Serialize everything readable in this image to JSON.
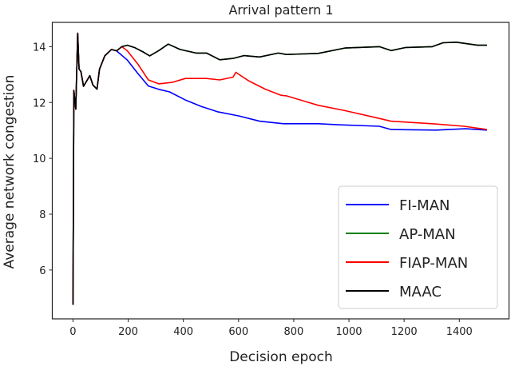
{
  "chart_data": {
    "type": "line",
    "title": "Arrival pattern 1",
    "xlabel": "Decision epoch",
    "ylabel": "Average network congestion",
    "xlim": [
      -75,
      1580
    ],
    "ylim": [
      4.25,
      14.87
    ],
    "xticks": [
      0,
      200,
      400,
      600,
      800,
      1000,
      1200,
      1400
    ],
    "yticks": [
      6,
      8,
      10,
      12,
      14
    ],
    "grid": false,
    "legend_position": "lower-right",
    "series": [
      {
        "name": "FI-MAN",
        "color": "#0000ff",
        "x": [
          0,
          3,
          10,
          17,
          22,
          29,
          38,
          61,
          72,
          87,
          96,
          115,
          139,
          158,
          197,
          235,
          273,
          311,
          350,
          407,
          465,
          523,
          600,
          677,
          763,
          889,
          966,
          1110,
          1153,
          1317,
          1422,
          1500
        ],
        "y": [
          4.75,
          12.43,
          11.76,
          14.48,
          13.2,
          13.1,
          12.58,
          12.96,
          12.63,
          12.48,
          13.19,
          13.67,
          13.9,
          13.85,
          13.52,
          13.04,
          12.59,
          12.47,
          12.38,
          12.09,
          11.86,
          11.67,
          11.52,
          11.33,
          11.24,
          11.24,
          11.2,
          11.15,
          11.03,
          11.01,
          11.06,
          11.01
        ]
      },
      {
        "name": "AP-MAN",
        "color": "#008000",
        "x": [
          0,
          3,
          10,
          17,
          22,
          29,
          38,
          61,
          72,
          87,
          96,
          115,
          139,
          158,
          177,
          197,
          225,
          254,
          278,
          311,
          345,
          388,
          446,
          484,
          532,
          580,
          619,
          676,
          744,
          773,
          889,
          985,
          1110,
          1153,
          1206,
          1302,
          1341,
          1389,
          1466,
          1500
        ],
        "y": [
          4.75,
          12.43,
          11.76,
          14.48,
          13.2,
          13.1,
          12.58,
          12.96,
          12.63,
          12.48,
          13.19,
          13.67,
          13.9,
          13.85,
          14.0,
          14.05,
          13.96,
          13.81,
          13.67,
          13.86,
          14.09,
          13.9,
          13.77,
          13.77,
          13.53,
          13.58,
          13.68,
          13.63,
          13.77,
          13.72,
          13.76,
          13.95,
          14.0,
          13.86,
          13.97,
          14.0,
          14.14,
          14.16,
          14.05,
          14.05
        ]
      },
      {
        "name": "FIAP-MAN",
        "color": "#ff0000",
        "x": [
          0,
          3,
          10,
          17,
          22,
          29,
          38,
          61,
          72,
          87,
          96,
          115,
          139,
          158,
          177,
          197,
          235,
          273,
          311,
          359,
          407,
          484,
          532,
          580,
          590,
          638,
          696,
          754,
          773,
          889,
          985,
          1110,
          1153,
          1302,
          1417,
          1500
        ],
        "y": [
          4.75,
          12.43,
          11.76,
          14.48,
          13.2,
          13.1,
          12.58,
          12.96,
          12.63,
          12.48,
          13.19,
          13.67,
          13.9,
          13.85,
          14.0,
          13.85,
          13.38,
          12.81,
          12.67,
          12.72,
          12.86,
          12.86,
          12.81,
          12.91,
          13.08,
          12.77,
          12.48,
          12.26,
          12.24,
          11.9,
          11.71,
          11.43,
          11.33,
          11.24,
          11.15,
          11.03
        ]
      },
      {
        "name": "MAAC",
        "color": "#000000",
        "x": [
          0,
          3,
          10,
          17,
          22,
          29,
          38,
          61,
          72,
          87,
          96,
          115,
          139,
          158,
          177,
          197,
          225,
          254,
          278,
          311,
          345,
          388,
          446,
          484,
          532,
          580,
          619,
          676,
          744,
          773,
          889,
          985,
          1110,
          1153,
          1206,
          1302,
          1341,
          1389,
          1466,
          1500
        ],
        "y": [
          4.75,
          12.43,
          11.76,
          14.48,
          13.2,
          13.1,
          12.58,
          12.96,
          12.63,
          12.48,
          13.19,
          13.67,
          13.9,
          13.85,
          14.0,
          14.05,
          13.96,
          13.81,
          13.67,
          13.86,
          14.09,
          13.9,
          13.77,
          13.77,
          13.53,
          13.58,
          13.68,
          13.63,
          13.77,
          13.72,
          13.76,
          13.95,
          14.0,
          13.86,
          13.97,
          14.0,
          14.14,
          14.16,
          14.05,
          14.05
        ]
      }
    ]
  }
}
